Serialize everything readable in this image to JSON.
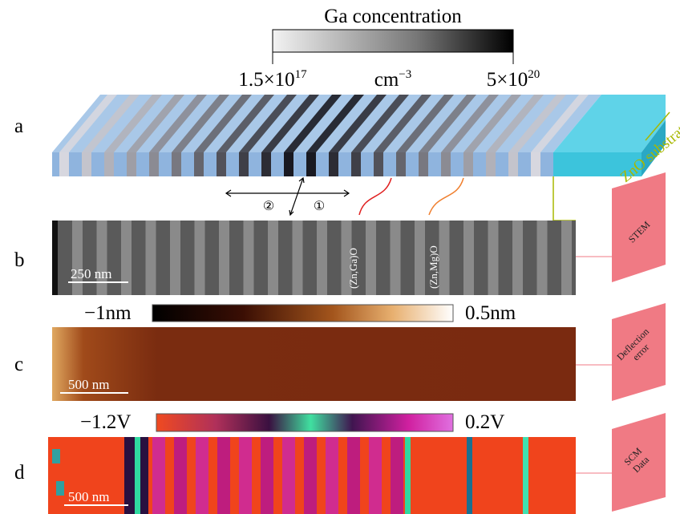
{
  "figure": {
    "colorbar_ga": {
      "title": "Ga concentration",
      "min": {
        "base": "1.5×10",
        "exp": "17"
      },
      "unit": {
        "base": "cm",
        "exp": "−3"
      },
      "max": {
        "base": "5×10",
        "exp": "20"
      }
    },
    "panels": [
      {
        "letter": "a",
        "substrate": "ZnO substrate",
        "directions": [
          "②",
          "①"
        ]
      },
      {
        "letter": "b",
        "tag": "STEM",
        "scale": "250 nm",
        "labels": [
          "(Zn,Ga)O",
          "(Zn,Mg)O"
        ]
      },
      {
        "letter": "c",
        "tag": [
          "Deflection",
          "error"
        ],
        "scale": "500 nm",
        "colorbar": {
          "min": "−1nm",
          "max": "0.5nm"
        }
      },
      {
        "letter": "d",
        "tag": [
          "SCM",
          "Data"
        ],
        "scale": "500 nm",
        "colorbar": {
          "min": "−1.2V",
          "max": "0.2V"
        }
      }
    ]
  }
}
